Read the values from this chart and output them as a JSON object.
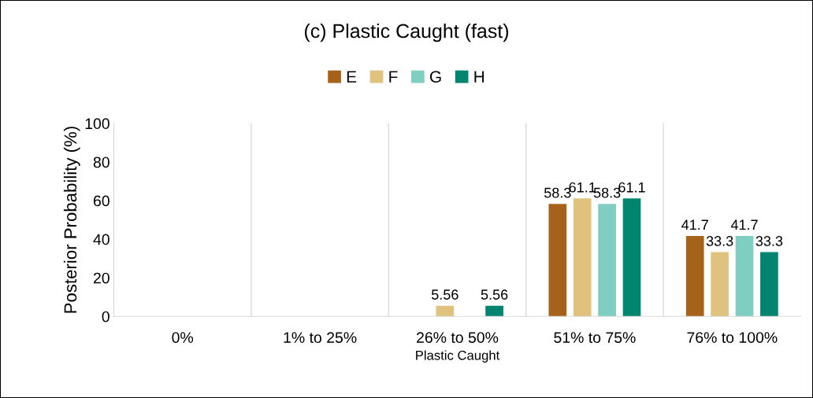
{
  "chart_data": {
    "type": "bar",
    "title": "(c) Plastic Caught (fast)",
    "xlabel": "Plastic Caught",
    "ylabel": "Posterior Probability (%)",
    "categories": [
      "0%",
      "1% to 25%",
      "26% to 50%",
      "51% to 75%",
      "76% to 100%"
    ],
    "series": [
      {
        "name": "E",
        "color": "#a6611a",
        "values": [
          0,
          0,
          0,
          58.3,
          41.7
        ],
        "value_labels": [
          null,
          null,
          null,
          "58.3",
          "41.7"
        ]
      },
      {
        "name": "F",
        "color": "#dfc27d",
        "values": [
          0,
          0,
          5.56,
          61.1,
          33.3
        ],
        "value_labels": [
          null,
          null,
          "5.56",
          "61.1",
          "33.3"
        ]
      },
      {
        "name": "G",
        "color": "#80cdc1",
        "values": [
          0,
          0,
          0,
          58.3,
          41.7
        ],
        "value_labels": [
          null,
          null,
          null,
          "58.3",
          "41.7"
        ]
      },
      {
        "name": "H",
        "color": "#018571",
        "values": [
          0,
          0,
          5.56,
          61.1,
          33.3
        ],
        "value_labels": [
          null,
          null,
          "5.56",
          "61.1",
          "33.3"
        ]
      }
    ],
    "ylim": [
      0,
      100
    ],
    "yticks": [
      0,
      20,
      40,
      60,
      80,
      100
    ],
    "grid": "x",
    "legend": "top"
  }
}
